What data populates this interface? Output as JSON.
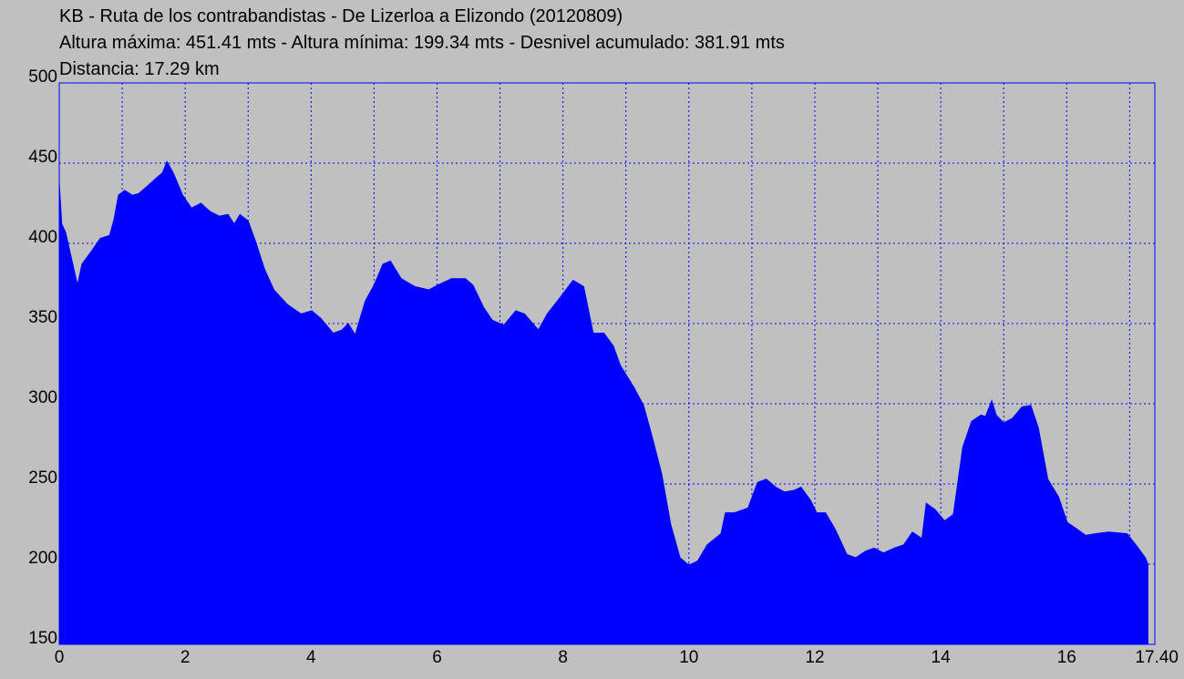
{
  "chart_data": {
    "type": "area",
    "title": "KB - Ruta de los contrabandistas - De Lizerloa a Elizondo (20120809)",
    "subtitle_lines": [
      "Altura máxima: 451.41 mts - Altura mínima: 199.34 mts - Desnivel acumulado: 381.91 mts",
      "Distancia: 17.29 km"
    ],
    "color": "#0000ff",
    "x": [
      0,
      0.04,
      0.1,
      0.29,
      0.36,
      0.51,
      0.65,
      0.8,
      0.87,
      0.94,
      1.04,
      1.16,
      1.26,
      1.38,
      1.52,
      1.64,
      1.71,
      1.81,
      1.96,
      2.1,
      2.25,
      2.39,
      2.54,
      2.68,
      2.78,
      2.87,
      3.0,
      3.12,
      3.26,
      3.41,
      3.62,
      3.84,
      4.01,
      4.16,
      4.35,
      4.49,
      4.59,
      4.7,
      4.86,
      5.0,
      5.14,
      5.26,
      5.43,
      5.65,
      5.87,
      6.01,
      6.23,
      6.45,
      6.57,
      6.74,
      6.88,
      7.06,
      7.25,
      7.39,
      7.61,
      7.75,
      7.97,
      8.16,
      8.33,
      8.48,
      8.65,
      8.8,
      8.91,
      9.13,
      9.28,
      9.42,
      9.57,
      9.71,
      9.86,
      10.0,
      10.14,
      10.29,
      10.51,
      10.58,
      10.72,
      10.94,
      11.09,
      11.23,
      11.38,
      11.52,
      11.67,
      11.78,
      11.93,
      12.03,
      12.17,
      12.32,
      12.51,
      12.65,
      12.8,
      12.94,
      13.09,
      13.26,
      13.41,
      13.55,
      13.7,
      13.77,
      13.91,
      14.06,
      14.2,
      14.35,
      14.49,
      14.64,
      14.71,
      14.81,
      14.88,
      15.0,
      15.14,
      15.29,
      15.43,
      15.55,
      15.7,
      15.87,
      16.01,
      16.16,
      16.3,
      16.45,
      16.67,
      16.96,
      17.1,
      17.25,
      17.29
    ],
    "values": [
      438,
      412,
      407,
      374,
      387,
      395,
      403,
      405,
      415,
      430,
      433,
      430,
      431,
      435,
      440,
      444,
      451,
      444,
      430,
      422,
      425,
      420,
      417,
      418,
      412,
      418,
      414,
      401,
      384,
      371,
      362,
      356,
      358,
      353,
      344,
      346,
      350,
      343,
      364,
      374,
      387,
      389,
      378,
      373,
      371,
      374,
      378,
      378,
      374,
      360,
      352,
      349,
      358,
      356,
      346,
      356,
      367,
      377,
      373,
      344,
      344,
      336,
      324,
      310,
      299,
      279,
      256,
      225,
      204,
      199.34,
      202,
      212,
      219,
      232,
      232,
      235,
      251,
      253,
      248,
      245,
      246,
      248,
      240,
      232,
      232,
      222,
      206,
      204,
      208,
      210,
      207,
      210,
      212,
      220,
      216,
      238,
      234,
      227,
      231,
      273,
      289,
      293,
      292,
      302,
      293,
      288,
      291,
      298,
      299,
      285,
      253,
      242,
      226,
      222,
      218,
      219,
      220,
      219,
      212,
      204,
      200
    ],
    "xlim": [
      0,
      17.4
    ],
    "xticks": [
      0,
      2,
      4,
      6,
      8,
      10,
      12,
      14,
      16,
      {
        "value": 17.4,
        "label": "17.40"
      }
    ],
    "xgrid": [
      1,
      2,
      3,
      4,
      5,
      6,
      7,
      8,
      9,
      10,
      11,
      12,
      13,
      14,
      15,
      16,
      17
    ],
    "ylim": [
      150,
      500
    ],
    "yticks": [
      150,
      200,
      250,
      300,
      350,
      400,
      450,
      500
    ],
    "grid": true
  }
}
